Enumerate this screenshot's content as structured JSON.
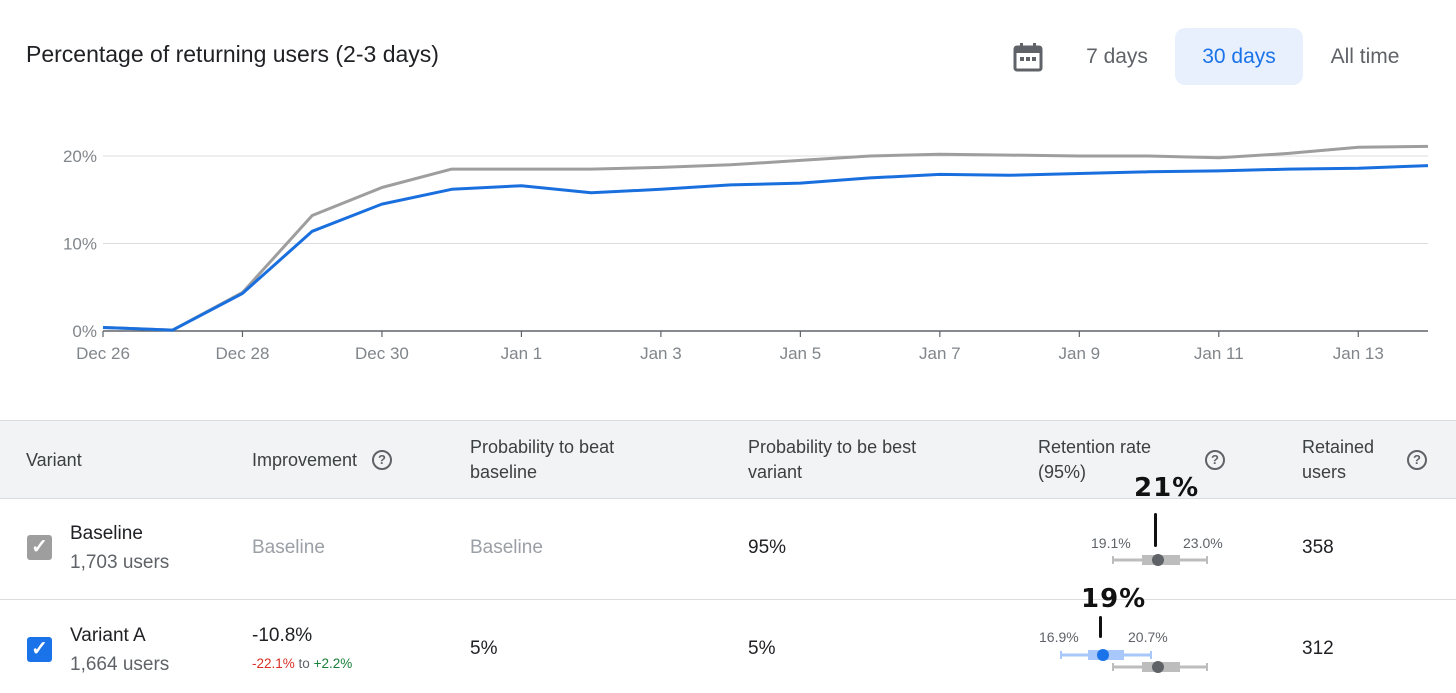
{
  "header": {
    "title": "Percentage of returning users (2-3 days)",
    "ranges": [
      "7 days",
      "30 days",
      "All time"
    ],
    "active_range": "30 days"
  },
  "chart_data": {
    "type": "line",
    "x": [
      "Dec 26",
      "Dec 27",
      "Dec 28",
      "Dec 29",
      "Dec 30",
      "Dec 31",
      "Jan 1",
      "Jan 2",
      "Jan 3",
      "Jan 4",
      "Jan 5",
      "Jan 6",
      "Jan 7",
      "Jan 8",
      "Jan 9",
      "Jan 10",
      "Jan 11",
      "Jan 12",
      "Jan 13",
      "Jan 14"
    ],
    "x_tick_labels": [
      "Dec 26",
      "Dec 28",
      "Dec 30",
      "Jan 1",
      "Jan 3",
      "Jan 5",
      "Jan 7",
      "Jan 9",
      "Jan 11",
      "Jan 13"
    ],
    "y_tick_labels": [
      "0%",
      "10%",
      "20%"
    ],
    "ylim": [
      0,
      20
    ],
    "series": [
      {
        "name": "Baseline",
        "color": "#9e9e9e",
        "values": [
          0.4,
          0.1,
          4.4,
          13.2,
          16.4,
          18.5,
          18.5,
          18.5,
          18.7,
          19.0,
          19.5,
          20.0,
          20.2,
          20.1,
          20.0,
          20.0,
          19.8,
          20.3,
          21.0,
          21.1
        ]
      },
      {
        "name": "Variant A",
        "color": "#1a6fde",
        "values": [
          0.4,
          0.1,
          4.3,
          11.4,
          14.5,
          16.2,
          16.6,
          15.8,
          16.2,
          16.7,
          16.9,
          17.5,
          17.9,
          17.8,
          18.0,
          18.2,
          18.3,
          18.5,
          18.6,
          18.9
        ]
      }
    ]
  },
  "table": {
    "headers": {
      "variant": "Variant",
      "improvement": "Improvement",
      "prob_beat_1": "Probability to beat",
      "prob_beat_2": "baseline",
      "prob_best_1": "Probability to be best",
      "prob_best_2": "variant",
      "retention_1": "Retention rate",
      "retention_2": "(95%)",
      "retained_1": "Retained",
      "retained_2": "users",
      "help": "?"
    },
    "rows": [
      {
        "name": "Baseline",
        "users": "1,703 users",
        "improvement": "Baseline",
        "prob_beat": "Baseline",
        "prob_best": "95%",
        "ci_low": "19.1%",
        "ci_high": "23.0%",
        "annotation": "21%",
        "retained": "358",
        "checkbox_color": "#9e9e9e"
      },
      {
        "name": "Variant A",
        "users": "1,664 users",
        "improvement": "-10.8%",
        "improvement_low": "-22.1%",
        "improvement_to": "to",
        "improvement_high": "+2.2%",
        "prob_beat": "5%",
        "prob_best": "5%",
        "ci_low": "16.9%",
        "ci_high": "20.7%",
        "annotation": "19%",
        "retained": "312",
        "checkbox_color": "#1a73e8"
      }
    ]
  },
  "icons": {
    "calendar": "calendar-icon",
    "check": "check-icon",
    "help": "help-circle-icon"
  },
  "colors": {
    "accent": "#1a73e8",
    "baseline_gray": "#9e9e9e",
    "negative": "#d93025",
    "positive": "#188038"
  }
}
